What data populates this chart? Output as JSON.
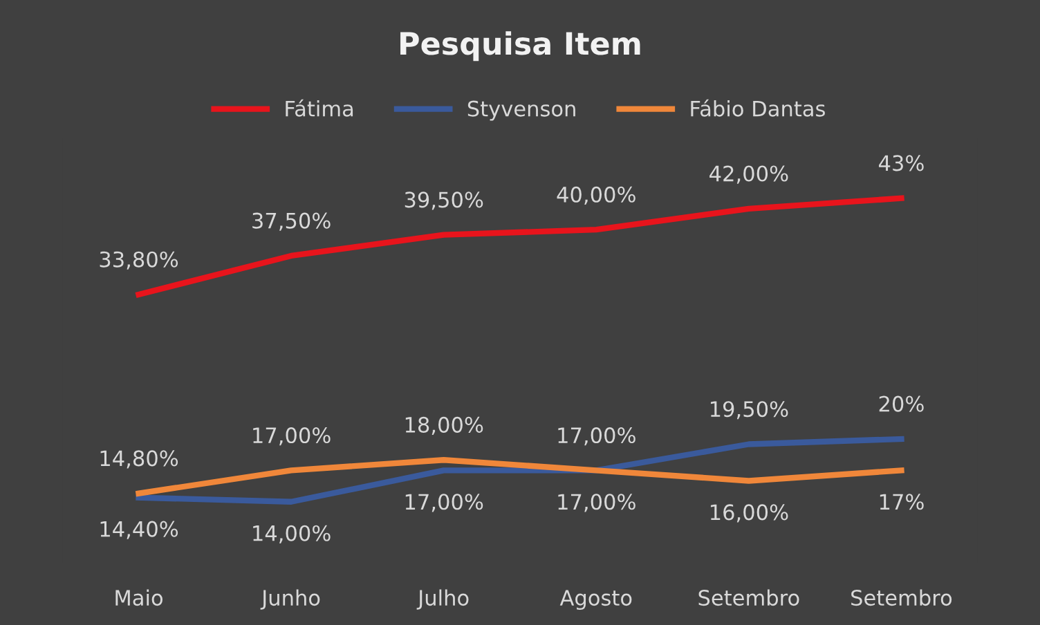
{
  "chart_data": {
    "type": "line",
    "title": "Pesquisa Item",
    "categories": [
      "Maio",
      "Junho",
      "Julho",
      "Agosto",
      "Setembro",
      "Setembro"
    ],
    "series": [
      {
        "name": "Fátima",
        "color": "#e8141c",
        "values": [
          33.8,
          37.5,
          39.5,
          40.0,
          42.0,
          43
        ],
        "value_labels": [
          "33,80%",
          "37,50%",
          "39,50%",
          "40,00%",
          "42,00%",
          "43%"
        ]
      },
      {
        "name": "Styvenson",
        "color": "#3a5a9c",
        "values": [
          14.4,
          14.0,
          17.0,
          17.0,
          19.5,
          20
        ],
        "value_labels": [
          "14,40%",
          "14,00%",
          "17,00%",
          "17,00%",
          "19,50%",
          "20%"
        ]
      },
      {
        "name": "Fábio Dantas",
        "color": "#f0873a",
        "values": [
          14.8,
          17.0,
          18.0,
          17.0,
          16.0,
          17
        ],
        "value_labels": [
          "14,80%",
          "17,00%",
          "18,00%",
          "17,00%",
          "16,00%",
          "17%"
        ]
      }
    ],
    "legend": "top",
    "grid": false,
    "marker": "none",
    "line_style": "solid"
  }
}
